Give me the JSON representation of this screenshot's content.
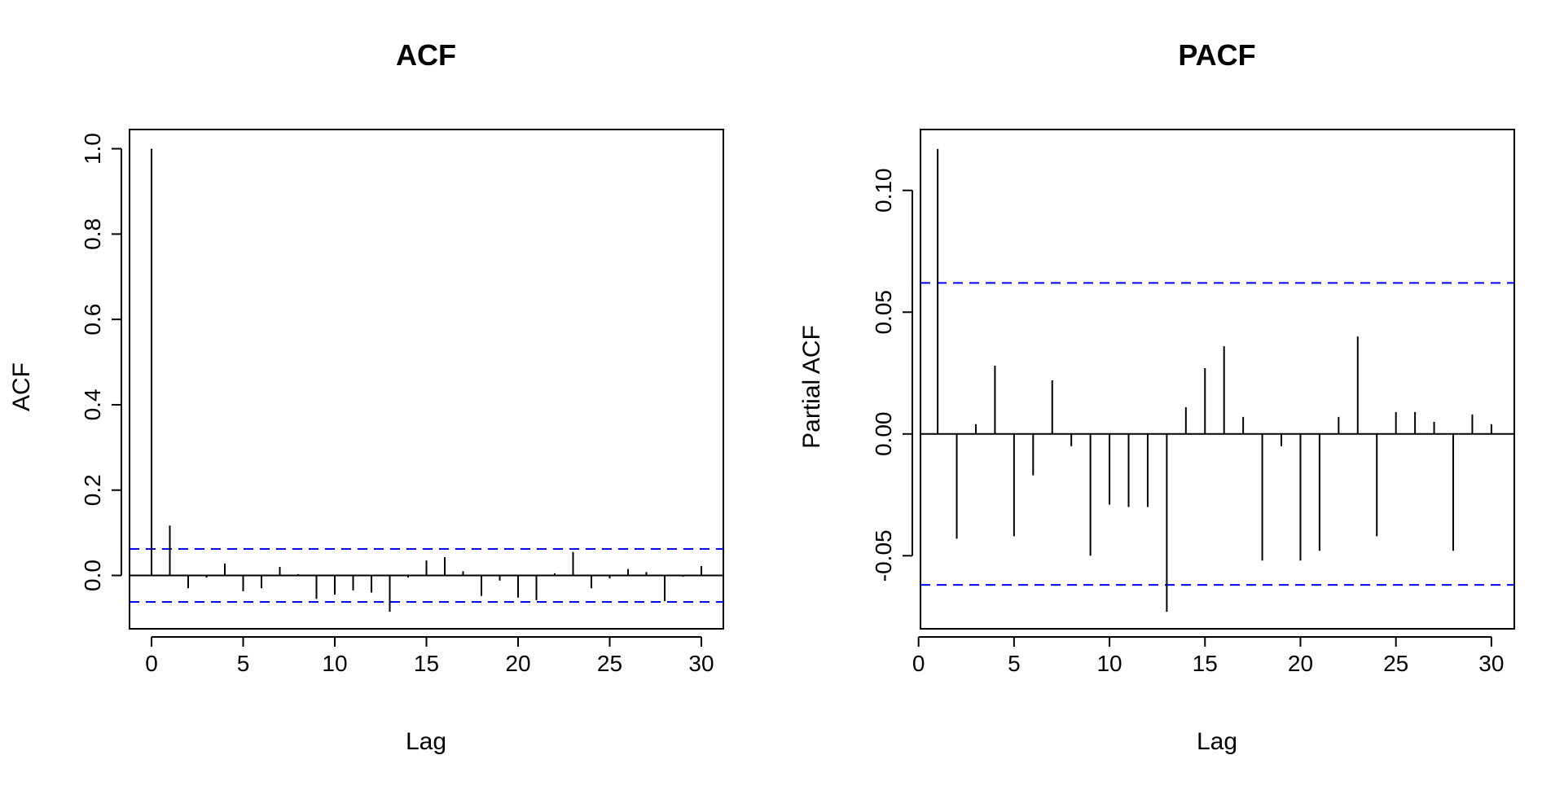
{
  "chart_data": [
    {
      "type": "bar",
      "title": "ACF",
      "xlabel": "Lag",
      "ylabel": "ACF",
      "xlim": [
        -1.2,
        31.2
      ],
      "ylim": [
        -0.125,
        1.045
      ],
      "xticks": [
        0,
        5,
        10,
        15,
        20,
        25,
        30
      ],
      "xtick_labels": [
        "0",
        "5",
        "10",
        "15",
        "20",
        "25",
        "30"
      ],
      "yticks": [
        0.0,
        0.2,
        0.4,
        0.6,
        0.8,
        1.0
      ],
      "ytick_labels": [
        "0.0",
        "0.2",
        "0.4",
        "0.6",
        "0.8",
        "1.0"
      ],
      "confidence_bound": 0.062,
      "confidence_color": "#0000ff",
      "lags": [
        0,
        1,
        2,
        3,
        4,
        5,
        6,
        7,
        8,
        9,
        10,
        11,
        12,
        13,
        14,
        15,
        16,
        17,
        18,
        19,
        20,
        21,
        22,
        23,
        24,
        25,
        26,
        27,
        28,
        29,
        30
      ],
      "values": [
        1.0,
        0.117,
        -0.03,
        -0.005,
        0.028,
        -0.037,
        -0.03,
        0.02,
        0.003,
        -0.055,
        -0.045,
        -0.035,
        -0.04,
        -0.085,
        -0.005,
        0.035,
        0.043,
        0.01,
        -0.048,
        -0.012,
        -0.052,
        -0.058,
        0.005,
        0.055,
        -0.03,
        -0.007,
        0.015,
        0.008,
        -0.06,
        -0.003,
        0.022
      ]
    },
    {
      "type": "bar",
      "title": "PACF",
      "xlabel": "Lag",
      "ylabel": "Partial ACF",
      "xlim": [
        0.1,
        31.2
      ],
      "ylim": [
        -0.08,
        0.125
      ],
      "xticks": [
        0,
        5,
        10,
        15,
        20,
        25,
        30
      ],
      "xtick_labels": [
        "0",
        "5",
        "10",
        "15",
        "20",
        "25",
        "30"
      ],
      "yticks": [
        -0.05,
        0.0,
        0.05,
        0.1
      ],
      "ytick_labels": [
        "-0.05",
        "0.00",
        "0.05",
        "0.10"
      ],
      "confidence_bound": 0.062,
      "confidence_color": "#0000ff",
      "lags": [
        1,
        2,
        3,
        4,
        5,
        6,
        7,
        8,
        9,
        10,
        11,
        12,
        13,
        14,
        15,
        16,
        17,
        18,
        19,
        20,
        21,
        22,
        23,
        24,
        25,
        26,
        27,
        28,
        29,
        30
      ],
      "values": [
        0.117,
        -0.043,
        0.004,
        0.028,
        -0.042,
        -0.017,
        0.022,
        -0.005,
        -0.05,
        -0.029,
        -0.03,
        -0.03,
        -0.073,
        0.011,
        0.027,
        0.036,
        0.007,
        -0.052,
        -0.005,
        -0.052,
        -0.048,
        0.007,
        0.04,
        -0.042,
        0.009,
        0.009,
        0.005,
        -0.048,
        0.008,
        0.004
      ]
    }
  ]
}
